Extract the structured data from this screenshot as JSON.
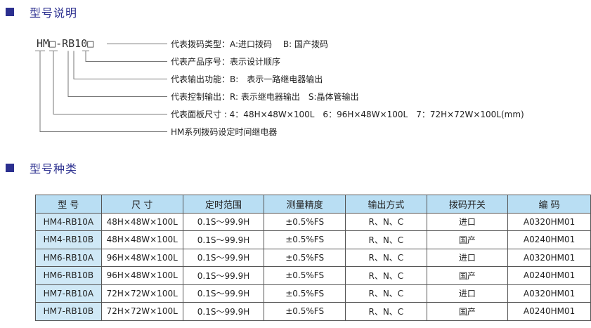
{
  "section1": {
    "title": "型号说明"
  },
  "model_code": "HM□-RB10□",
  "descriptions": [
    "代表拨码类型：A:进口拨码　 B: 国产拨码",
    "代表产品序号：表示设计顺序",
    "代表输出功能：B:　表示一路继电器输出",
    "代表控制输出：R: 表示继电器输出　S:晶体管输出",
    "代表面板尺寸 : 4：48H×48W×100L　6：96H×48W×100L　7：72H×72W×100L(mm)",
    "HM系列拨码设定时间继电器"
  ],
  "section2": {
    "title": "型号种类"
  },
  "table": {
    "headers": [
      "型 号",
      "尺 寸",
      "定时范围",
      "测量精度",
      "输出方式",
      "拨码开关",
      "编 码"
    ],
    "rows": [
      [
        "HM4-RB10A",
        "48H×48W×100L",
        "0.1S～99.9H",
        "±0.5%FS",
        "R、N、C",
        "进口",
        "A0320HM01"
      ],
      [
        "HM4-RB10B",
        "48H×48W×100L",
        "0.1S～99.9H",
        "±0.5%FS",
        "R、N、C",
        "国产",
        "A0240HM01"
      ],
      [
        "HM6-RB10A",
        "96H×48W×100L",
        "0.1S～99.9H",
        "±0.5%FS",
        "R、N、C",
        "进口",
        "A0320HM01"
      ],
      [
        "HM6-RB10B",
        "96H×48W×100L",
        "0.1S～99.9H",
        "±0.5%FS",
        "R、N、C",
        "国产",
        "A0240HM01"
      ],
      [
        "HM7-RB10A",
        "72H×72W×100L",
        "0.1S～99.9H",
        "±0.5%FS",
        "R、N、C",
        "进口",
        "A0320HM01"
      ],
      [
        "HM7-RB10B",
        "72H×72W×100L",
        "0.1S～99.9H",
        "±0.5%FS",
        "R、N、C",
        "国产",
        "A0240HM01"
      ]
    ]
  },
  "colors": {
    "accent": "#2b2f8f",
    "header_bg": "#b9def3",
    "first_col_bg": "#cfe8f6"
  }
}
